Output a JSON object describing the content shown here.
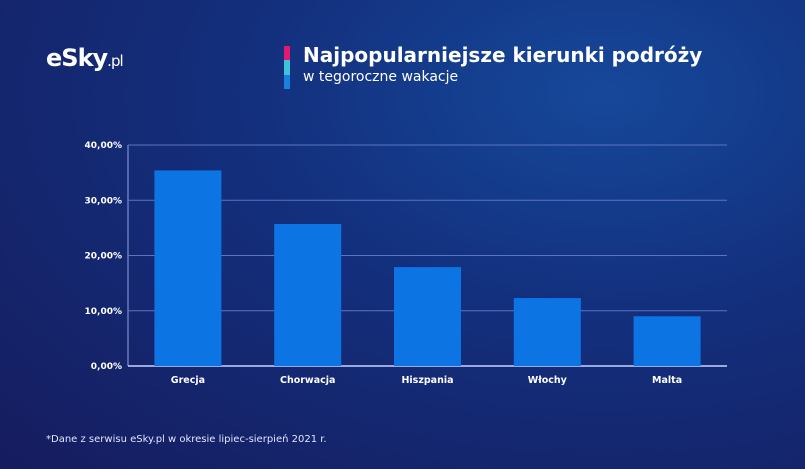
{
  "brand": {
    "logo": "eSky",
    "logo_suffix": ".pl"
  },
  "accent_colors": [
    "#e6176f",
    "#3ec3d9",
    "#1a7fe0"
  ],
  "bar_color": "#0d74e3",
  "chart_data": {
    "type": "bar",
    "title": "Najpopularniejsze kierunki podróży",
    "subtitle": "w tegoroczne wakacje",
    "categories": [
      "Grecja",
      "Chorwacja",
      "Hiszpania",
      "Włochy",
      "Malta"
    ],
    "values": [
      35.4,
      25.7,
      17.9,
      12.3,
      9.0
    ],
    "ylim": [
      0,
      40
    ],
    "yticks": [
      0,
      10,
      20,
      30,
      40
    ],
    "ytick_labels": [
      "0,00%",
      "10,00%",
      "20,00%",
      "30,00%",
      "40,00%"
    ],
    "grid": true,
    "xlabel": "",
    "ylabel": ""
  },
  "footnote": "*Dane z serwisu eSky.pl w okresie lipiec-sierpień 2021 r."
}
